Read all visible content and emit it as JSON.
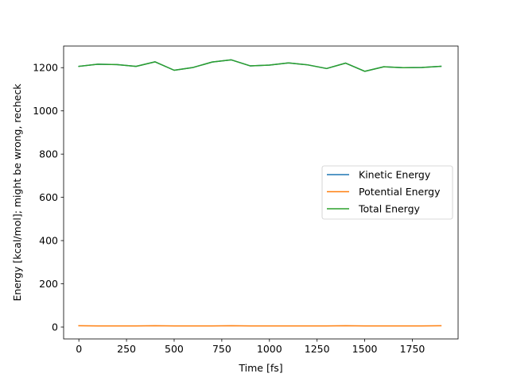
{
  "chart_data": {
    "type": "line",
    "title": "",
    "xlabel": "Time [fs]",
    "ylabel": "Energy [kcal/mol]; might be wrong, recheck",
    "xlim": [
      -80,
      1990
    ],
    "ylim": [
      -55,
      1300
    ],
    "xticks": [
      0,
      250,
      500,
      750,
      1000,
      1250,
      1500,
      1750
    ],
    "yticks": [
      0,
      200,
      400,
      600,
      800,
      1000,
      1200
    ],
    "grid": false,
    "legend_position": "center-right",
    "x": [
      0,
      100,
      200,
      300,
      400,
      500,
      600,
      700,
      800,
      900,
      1000,
      1100,
      1200,
      1300,
      1400,
      1500,
      1600,
      1700,
      1800,
      1900
    ],
    "series": [
      {
        "name": "Kinetic Energy",
        "color": "#1f77b4",
        "values": [
          1206,
          1216,
          1214,
          1206,
          1227,
          1188,
          1201,
          1226,
          1236,
          1208,
          1212,
          1222,
          1213,
          1196,
          1221,
          1183,
          1204,
          1200,
          1201,
          1206
        ]
      },
      {
        "name": "Potential Energy",
        "color": "#ff7f0e",
        "values": [
          6,
          5,
          5,
          5,
          6,
          5,
          5,
          5,
          6,
          5,
          5,
          5,
          5,
          5,
          6,
          5,
          5,
          5,
          5,
          6
        ]
      },
      {
        "name": "Total Energy",
        "color": "#2ca02c",
        "values": [
          1206,
          1216,
          1214,
          1206,
          1227,
          1188,
          1201,
          1226,
          1236,
          1208,
          1212,
          1222,
          1213,
          1196,
          1221,
          1183,
          1204,
          1200,
          1201,
          1206
        ]
      }
    ]
  }
}
